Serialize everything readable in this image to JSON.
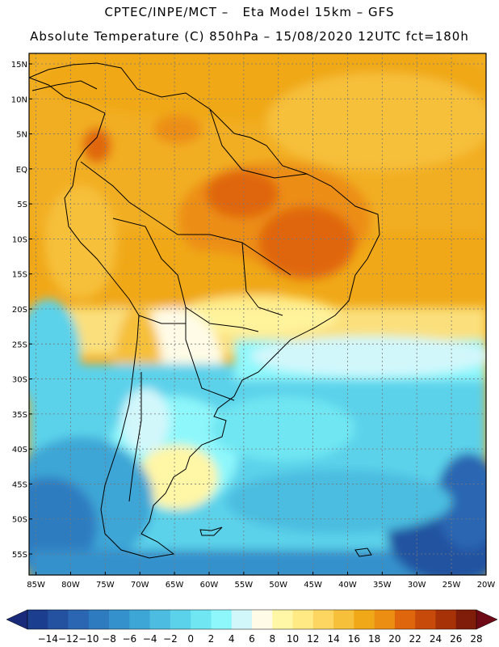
{
  "title": {
    "line1": "CPTEC/INPE/MCT –   Eta Model 15km – GFS",
    "line2": "Absolute Temperature (C) 850hPa – 15/08/2020 12UTC fct=180h"
  },
  "map": {
    "lat_labels": [
      "15N",
      "10N",
      "5N",
      "EQ",
      "5S",
      "10S",
      "15S",
      "20S",
      "25S",
      "30S",
      "35S",
      "40S",
      "45S",
      "50S",
      "55S"
    ],
    "lat_values": [
      15,
      10,
      5,
      0,
      -5,
      -10,
      -15,
      -20,
      -25,
      -30,
      -35,
      -40,
      -45,
      -50,
      -55
    ],
    "lon_labels": [
      "85W",
      "80W",
      "75W",
      "70W",
      "65W",
      "60W",
      "55W",
      "50W",
      "45W",
      "40W",
      "35W",
      "30W",
      "25W",
      "20W"
    ],
    "lon_values": [
      -85,
      -80,
      -75,
      -70,
      -65,
      -60,
      -55,
      -50,
      -45,
      -40,
      -35,
      -30,
      -25,
      -20
    ],
    "lat_range": [
      -58,
      16.5
    ],
    "lon_range": [
      -86,
      -20
    ]
  },
  "colorbar": {
    "labels": [
      "-14",
      "-12",
      "-10",
      "-8",
      "-6",
      "-4",
      "-2",
      "0",
      "2",
      "4",
      "6",
      "8",
      "10",
      "12",
      "14",
      "16",
      "18",
      "20",
      "22",
      "24",
      "26",
      "28"
    ],
    "colors": [
      "#1c3e8e",
      "#2452a0",
      "#2a66b2",
      "#2f7bc0",
      "#3591cc",
      "#3ea6d6",
      "#4cbde0",
      "#5cd2ea",
      "#6fe6f2",
      "#8ef7fb",
      "#d2f7fb",
      "#fffbe6",
      "#fff6a6",
      "#ffea84",
      "#fcd660",
      "#f6c03a",
      "#f0a818",
      "#ec8e12",
      "#e0660e",
      "#c84a0a",
      "#a83208",
      "#7f1c0a"
    ],
    "under_color": "#1a2a7a",
    "over_color": "#6e0a16"
  }
}
